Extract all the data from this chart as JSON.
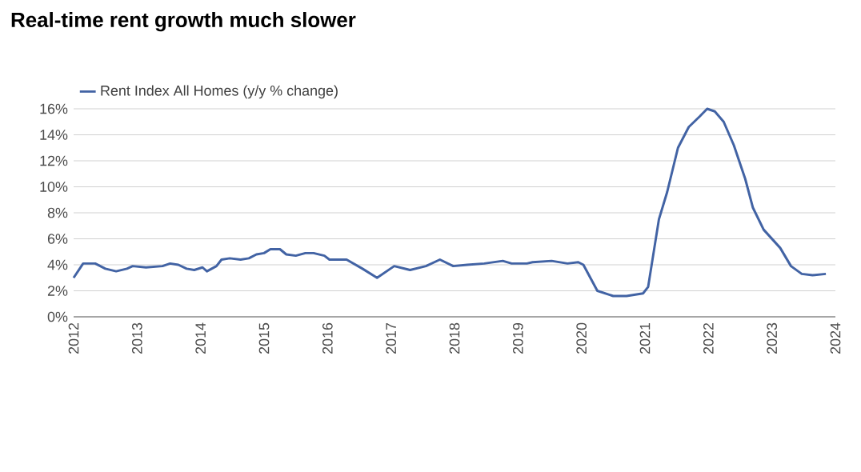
{
  "chart_data": {
    "type": "line",
    "title": "Real-time rent growth much slower",
    "x": [
      2012.0,
      2012.15,
      2012.34,
      2012.5,
      2012.67,
      2012.84,
      2012.93,
      2013.14,
      2013.4,
      2013.52,
      2013.65,
      2013.78,
      2013.9,
      2014.03,
      2014.1,
      2014.25,
      2014.33,
      2014.46,
      2014.63,
      2014.76,
      2014.88,
      2015.0,
      2015.1,
      2015.25,
      2015.35,
      2015.5,
      2015.65,
      2015.78,
      2015.95,
      2016.03,
      2016.3,
      2016.55,
      2016.78,
      2017.05,
      2017.3,
      2017.55,
      2017.77,
      2017.98,
      2018.2,
      2018.47,
      2018.76,
      2018.9,
      2019.14,
      2019.23,
      2019.53,
      2019.78,
      2019.95,
      2020.03,
      2020.25,
      2020.5,
      2020.71,
      2020.97,
      2021.05,
      2021.22,
      2021.35,
      2021.52,
      2021.69,
      2021.86,
      2021.98,
      2022.1,
      2022.24,
      2022.4,
      2022.58,
      2022.7,
      2022.87,
      2023.13,
      2023.3,
      2023.47,
      2023.64,
      2023.85
    ],
    "series": [
      {
        "name": "Rent Index All Homes (y/y % change)",
        "color": "#4263a4",
        "values": [
          3.0,
          4.1,
          4.1,
          3.7,
          3.5,
          3.7,
          3.9,
          3.8,
          3.9,
          4.1,
          4.0,
          3.7,
          3.6,
          3.8,
          3.5,
          3.9,
          4.4,
          4.5,
          4.4,
          4.5,
          4.8,
          4.9,
          5.2,
          5.2,
          4.8,
          4.7,
          4.9,
          4.9,
          4.7,
          4.4,
          4.4,
          3.7,
          3.0,
          3.9,
          3.6,
          3.9,
          4.4,
          3.9,
          4.0,
          4.1,
          4.3,
          4.1,
          4.1,
          4.2,
          4.3,
          4.1,
          4.2,
          4.0,
          2.0,
          1.6,
          1.6,
          1.8,
          2.3,
          7.5,
          9.6,
          13.0,
          14.6,
          15.4,
          16.0,
          15.8,
          15.0,
          13.2,
          10.6,
          8.4,
          6.7,
          5.3,
          3.9,
          3.3,
          3.2,
          3.3
        ]
      }
    ],
    "xlim": [
      2012,
      2024
    ],
    "xticks": [
      2012,
      2013,
      2014,
      2015,
      2016,
      2017,
      2018,
      2019,
      2020,
      2021,
      2022,
      2023,
      2024
    ],
    "ylim": [
      0,
      16
    ],
    "yticks": [
      {
        "value": 0,
        "label": "0%"
      },
      {
        "value": 2,
        "label": "2%"
      },
      {
        "value": 4,
        "label": "4%"
      },
      {
        "value": 6,
        "label": "6%"
      },
      {
        "value": 8,
        "label": "8%"
      },
      {
        "value": 10,
        "label": "10%"
      },
      {
        "value": 12,
        "label": "12%"
      },
      {
        "value": 14,
        "label": "14%"
      },
      {
        "value": 16,
        "label": "16%"
      }
    ],
    "grid": "y",
    "legend": "top left",
    "marker": "none",
    "line_style": "solid"
  }
}
